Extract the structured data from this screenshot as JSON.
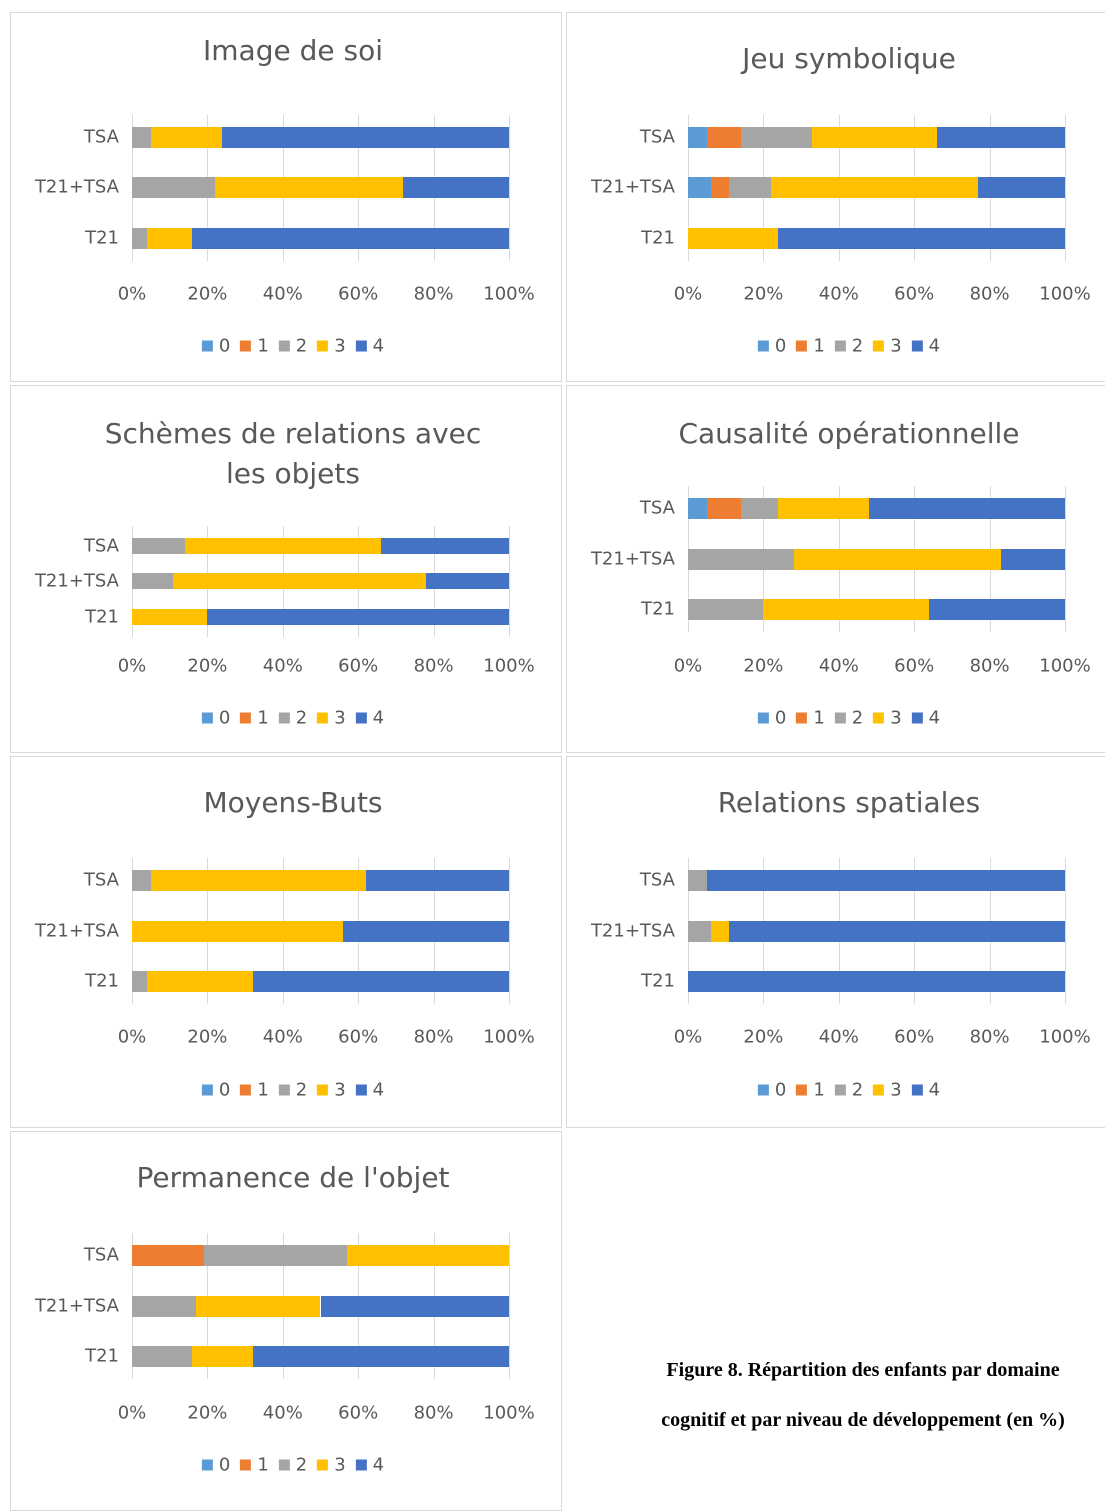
{
  "chart_data": [
    {
      "type": "stacked-bar-horizontal",
      "title": "Image de soi",
      "categories": [
        "TSA",
        "T21+TSA",
        "T21"
      ],
      "series": [
        {
          "name": "0",
          "color": "#5b9bd5",
          "values": [
            0,
            0,
            0
          ]
        },
        {
          "name": "1",
          "color": "#ed7d31",
          "values": [
            0,
            0,
            0
          ]
        },
        {
          "name": "2",
          "color": "#a5a5a5",
          "values": [
            5,
            22,
            4
          ]
        },
        {
          "name": "3",
          "color": "#ffc000",
          "values": [
            19,
            50,
            12
          ]
        },
        {
          "name": "4",
          "color": "#4472c4",
          "values": [
            76,
            28,
            84
          ]
        }
      ],
      "xlim": [
        0,
        100
      ],
      "xticks": [
        {
          "value": 0,
          "label": "0%"
        },
        {
          "value": 20,
          "label": "20%"
        },
        {
          "value": 40,
          "label": "40%"
        },
        {
          "value": 60,
          "label": "60%"
        },
        {
          "value": 80,
          "label": "80%"
        },
        {
          "value": 100,
          "label": "100%"
        }
      ],
      "grid": true,
      "legend": "bottom"
    },
    {
      "type": "stacked-bar-horizontal",
      "title": "Jeu symbolique",
      "categories": [
        "TSA",
        "T21+TSA",
        "T21"
      ],
      "series": [
        {
          "name": "0",
          "color": "#5b9bd5",
          "values": [
            5,
            6,
            0
          ]
        },
        {
          "name": "1",
          "color": "#ed7d31",
          "values": [
            9,
            5,
            0
          ]
        },
        {
          "name": "2",
          "color": "#a5a5a5",
          "values": [
            19,
            11,
            0
          ]
        },
        {
          "name": "3",
          "color": "#ffc000",
          "values": [
            33,
            55,
            24
          ]
        },
        {
          "name": "4",
          "color": "#4472c4",
          "values": [
            34,
            23,
            76
          ]
        }
      ],
      "xlim": [
        0,
        100
      ],
      "xticks": [
        {
          "value": 0,
          "label": "0%"
        },
        {
          "value": 20,
          "label": "20%"
        },
        {
          "value": 40,
          "label": "40%"
        },
        {
          "value": 60,
          "label": "60%"
        },
        {
          "value": 80,
          "label": "80%"
        },
        {
          "value": 100,
          "label": "100%"
        }
      ],
      "grid": true,
      "legend": "bottom"
    },
    {
      "type": "stacked-bar-horizontal",
      "title": "Schèmes de relations avec les objets",
      "categories": [
        "TSA",
        "T21+TSA",
        "T21"
      ],
      "series": [
        {
          "name": "0",
          "color": "#5b9bd5",
          "values": [
            0,
            0,
            0
          ]
        },
        {
          "name": "1",
          "color": "#ed7d31",
          "values": [
            0,
            0,
            0
          ]
        },
        {
          "name": "2",
          "color": "#a5a5a5",
          "values": [
            14,
            11,
            0
          ]
        },
        {
          "name": "3",
          "color": "#ffc000",
          "values": [
            52,
            67,
            20
          ]
        },
        {
          "name": "4",
          "color": "#4472c4",
          "values": [
            34,
            22,
            80
          ]
        }
      ],
      "xlim": [
        0,
        100
      ],
      "xticks": [
        {
          "value": 0,
          "label": "0%"
        },
        {
          "value": 20,
          "label": "20%"
        },
        {
          "value": 40,
          "label": "40%"
        },
        {
          "value": 60,
          "label": "60%"
        },
        {
          "value": 80,
          "label": "80%"
        },
        {
          "value": 100,
          "label": "100%"
        }
      ],
      "grid": true,
      "legend": "bottom"
    },
    {
      "type": "stacked-bar-horizontal",
      "title": "Causalité opérationnelle",
      "categories": [
        "TSA",
        "T21+TSA",
        "T21"
      ],
      "series": [
        {
          "name": "0",
          "color": "#5b9bd5",
          "values": [
            5,
            0,
            0
          ]
        },
        {
          "name": "1",
          "color": "#ed7d31",
          "values": [
            9,
            0,
            0
          ]
        },
        {
          "name": "2",
          "color": "#a5a5a5",
          "values": [
            10,
            28,
            20
          ]
        },
        {
          "name": "3",
          "color": "#ffc000",
          "values": [
            24,
            55,
            44
          ]
        },
        {
          "name": "4",
          "color": "#4472c4",
          "values": [
            52,
            17,
            36
          ]
        }
      ],
      "xlim": [
        0,
        100
      ],
      "xticks": [
        {
          "value": 0,
          "label": "0%"
        },
        {
          "value": 20,
          "label": "20%"
        },
        {
          "value": 40,
          "label": "40%"
        },
        {
          "value": 60,
          "label": "60%"
        },
        {
          "value": 80,
          "label": "80%"
        },
        {
          "value": 100,
          "label": "100%"
        }
      ],
      "grid": true,
      "legend": "bottom"
    },
    {
      "type": "stacked-bar-horizontal",
      "title": "Moyens-Buts",
      "categories": [
        "TSA",
        "T21+TSA",
        "T21"
      ],
      "series": [
        {
          "name": "0",
          "color": "#5b9bd5",
          "values": [
            0,
            0,
            0
          ]
        },
        {
          "name": "1",
          "color": "#ed7d31",
          "values": [
            0,
            0,
            0
          ]
        },
        {
          "name": "2",
          "color": "#a5a5a5",
          "values": [
            5,
            0,
            4
          ]
        },
        {
          "name": "3",
          "color": "#ffc000",
          "values": [
            57,
            56,
            28
          ]
        },
        {
          "name": "4",
          "color": "#4472c4",
          "values": [
            38,
            44,
            68
          ]
        }
      ],
      "xlim": [
        0,
        100
      ],
      "xticks": [
        {
          "value": 0,
          "label": "0%"
        },
        {
          "value": 20,
          "label": "20%"
        },
        {
          "value": 40,
          "label": "40%"
        },
        {
          "value": 60,
          "label": "60%"
        },
        {
          "value": 80,
          "label": "80%"
        },
        {
          "value": 100,
          "label": "100%"
        }
      ],
      "grid": true,
      "legend": "bottom"
    },
    {
      "type": "stacked-bar-horizontal",
      "title": "Relations spatiales",
      "categories": [
        "TSA",
        "T21+TSA",
        "T21"
      ],
      "series": [
        {
          "name": "0",
          "color": "#5b9bd5",
          "values": [
            0,
            0,
            0
          ]
        },
        {
          "name": "1",
          "color": "#ed7d31",
          "values": [
            0,
            0,
            0
          ]
        },
        {
          "name": "2",
          "color": "#a5a5a5",
          "values": [
            5,
            6,
            0
          ]
        },
        {
          "name": "3",
          "color": "#ffc000",
          "values": [
            0,
            5,
            0
          ]
        },
        {
          "name": "4",
          "color": "#4472c4",
          "values": [
            95,
            89,
            100
          ]
        }
      ],
      "xlim": [
        0,
        100
      ],
      "xticks": [
        {
          "value": 0,
          "label": "0%"
        },
        {
          "value": 20,
          "label": "20%"
        },
        {
          "value": 40,
          "label": "40%"
        },
        {
          "value": 60,
          "label": "60%"
        },
        {
          "value": 80,
          "label": "80%"
        },
        {
          "value": 100,
          "label": "100%"
        }
      ],
      "grid": true,
      "legend": "bottom"
    },
    {
      "type": "stacked-bar-horizontal",
      "title": "Permanence de l'objet",
      "categories": [
        "TSA",
        "T21+TSA",
        "T21"
      ],
      "series": [
        {
          "name": "0",
          "color": "#5b9bd5",
          "values": [
            0,
            0,
            0
          ]
        },
        {
          "name": "1",
          "color": "#ed7d31",
          "values": [
            19,
            0,
            0
          ]
        },
        {
          "name": "2",
          "color": "#a5a5a5",
          "values": [
            38,
            17,
            16
          ]
        },
        {
          "name": "3",
          "color": "#ffc000",
          "values": [
            43,
            33,
            16
          ]
        },
        {
          "name": "4",
          "color": "#4472c4",
          "values": [
            0,
            50,
            68
          ]
        }
      ],
      "xlim": [
        0,
        100
      ],
      "xticks": [
        {
          "value": 0,
          "label": "0%"
        },
        {
          "value": 20,
          "label": "20%"
        },
        {
          "value": 40,
          "label": "40%"
        },
        {
          "value": 60,
          "label": "60%"
        },
        {
          "value": 80,
          "label": "80%"
        },
        {
          "value": 100,
          "label": "100%"
        }
      ],
      "grid": true,
      "legend": "bottom"
    }
  ],
  "caption": [
    "Figure 8. Répartition des enfants par domaine",
    "cognitif et par niveau de développement (en %)"
  ]
}
